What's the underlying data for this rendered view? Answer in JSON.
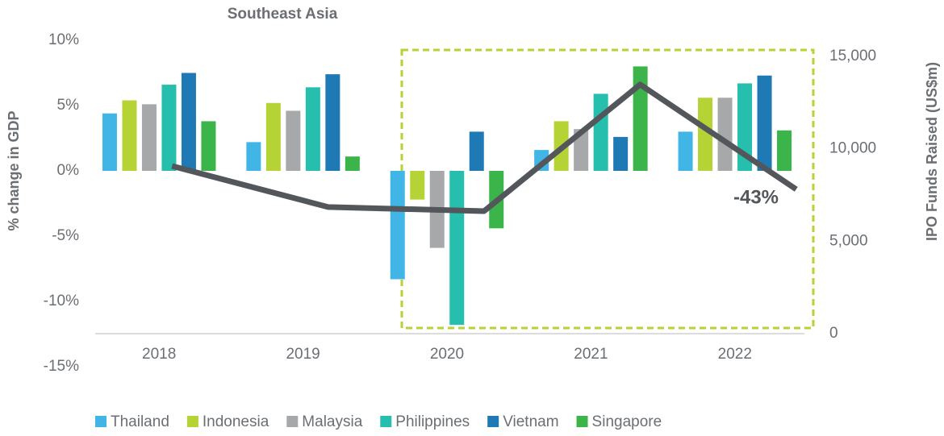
{
  "chart_data": {
    "type": "bar",
    "title": "Southeast Asia",
    "ylabel": "% change in GDP",
    "y2label": "IPO Funds Raised (US$m)",
    "annotation": "-43%",
    "categories": [
      "2018",
      "2019",
      "2020",
      "2021",
      "2022"
    ],
    "series": [
      {
        "name": "Thailand",
        "color": "#41b6e6",
        "values": [
          4.4,
          2.2,
          -8.3,
          1.6,
          3.0
        ]
      },
      {
        "name": "Indonesia",
        "color": "#b5d334",
        "values": [
          5.4,
          5.2,
          -2.2,
          3.8,
          5.6
        ]
      },
      {
        "name": "Malaysia",
        "color": "#a7a8aa",
        "values": [
          5.1,
          4.6,
          -5.9,
          3.2,
          5.6
        ]
      },
      {
        "name": "Philippines",
        "color": "#26bfad",
        "values": [
          6.6,
          6.4,
          -11.8,
          5.9,
          6.7
        ]
      },
      {
        "name": "Vietnam",
        "color": "#1f79b4",
        "values": [
          7.5,
          7.4,
          3.0,
          2.6,
          7.3
        ]
      },
      {
        "name": "Singapore",
        "color": "#3bb54a",
        "values": [
          3.8,
          1.1,
          -4.4,
          8.0,
          3.1
        ]
      }
    ],
    "line": {
      "type": "line",
      "axis": "y2",
      "color": "#53565a",
      "values": [
        9070,
        6850,
        6630,
        13480,
        7810
      ]
    },
    "ylim": [
      -15,
      10
    ],
    "yticks": [
      {
        "value": 10,
        "label": "10%"
      },
      {
        "value": 5,
        "label": "5%"
      },
      {
        "value": 0,
        "label": "0%"
      },
      {
        "value": -5,
        "label": "-5%"
      },
      {
        "value": -10,
        "label": "-10%"
      },
      {
        "value": -15,
        "label": "-15%"
      }
    ],
    "y2lim": [
      0,
      15000
    ],
    "y2ticks": [
      {
        "value": 15000,
        "label": "15,000"
      },
      {
        "value": 10000,
        "label": "10,000"
      },
      {
        "value": 5000,
        "label": "5,000"
      },
      0
    ],
    "grid": false
  }
}
